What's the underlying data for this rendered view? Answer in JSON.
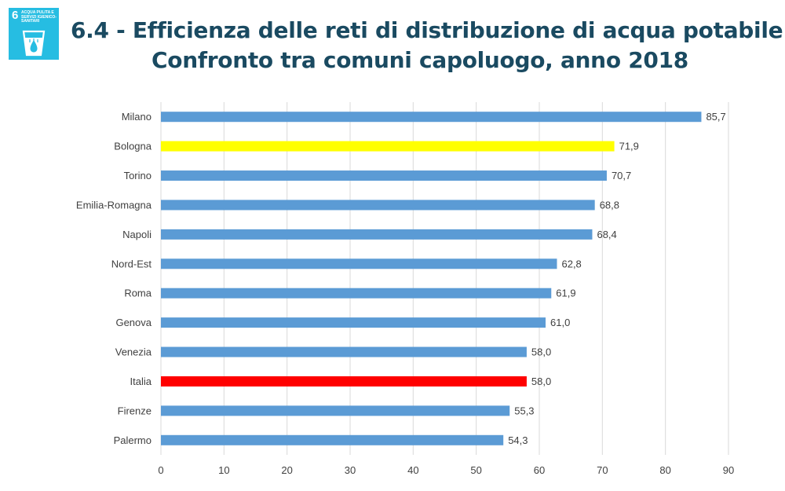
{
  "badge": {
    "number": "6",
    "text": "ACQUA PULITA E SERVIZI IGIENICO-SANITARI",
    "icon": "water-drop-glass-icon",
    "color": "#26bde2"
  },
  "title_lines": [
    "6.4 - Efficienza delle reti di distribuzione di acqua potabile.",
    "Confronto tra comuni capoluogo, anno 2018"
  ],
  "chart_data": {
    "type": "bar",
    "orientation": "horizontal",
    "categories": [
      "Milano",
      "Bologna",
      "Torino",
      "Emilia-Romagna",
      "Napoli",
      "Nord-Est",
      "Roma",
      "Genova",
      "Venezia",
      "Italia",
      "Firenze",
      "Palermo"
    ],
    "values": [
      85.7,
      71.9,
      70.7,
      68.8,
      68.4,
      62.8,
      61.9,
      61.0,
      58.0,
      58.0,
      55.3,
      54.3
    ],
    "value_labels": [
      "85,7",
      "71,9",
      "70,7",
      "68,8",
      "68,4",
      "62,8",
      "61,9",
      "61,0",
      "58,0",
      "58,0",
      "55,3",
      "54,3"
    ],
    "bar_colors": [
      "#5b9bd5",
      "#ffff00",
      "#5b9bd5",
      "#5b9bd5",
      "#5b9bd5",
      "#5b9bd5",
      "#5b9bd5",
      "#5b9bd5",
      "#5b9bd5",
      "#ff0000",
      "#5b9bd5",
      "#5b9bd5"
    ],
    "xlim": [
      0,
      90
    ],
    "xticks": [
      0,
      10,
      20,
      30,
      40,
      50,
      60,
      70,
      80,
      90
    ],
    "grid": "vertical",
    "legend": "none",
    "xlabel": "",
    "ylabel": ""
  }
}
